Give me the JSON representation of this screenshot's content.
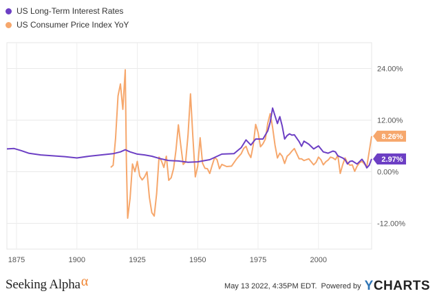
{
  "legend": {
    "items": [
      {
        "label": "US Long-Term Interest Rates",
        "color": "#6c3fc4"
      },
      {
        "label": "US Consumer Price Index YoY",
        "color": "#f6a76c"
      }
    ]
  },
  "footer": {
    "brand": "Seeking Alpha",
    "brand_symbol": "α",
    "timestamp": "May 13 2022, 4:35PM EDT.",
    "powered_by": "Powered by",
    "provider": "CHARTS",
    "provider_initial": "Y"
  },
  "chart_data": {
    "type": "line",
    "xlim": [
      1871,
      2022
    ],
    "ylim": [
      -18,
      30
    ],
    "x_ticks": [
      1875,
      1900,
      1925,
      1950,
      1975,
      2000
    ],
    "y_ticks": [
      {
        "value": 24,
        "label": "24.00%"
      },
      {
        "value": 12,
        "label": "12.00%"
      },
      {
        "value": 0,
        "label": "0.00%"
      },
      {
        "value": -12,
        "label": "-12.00%"
      }
    ],
    "grid": true,
    "legend_position": "top-left",
    "series": [
      {
        "name": "US Long-Term Interest Rates",
        "color": "#6c3fc4",
        "end_label": "2.97%",
        "points": [
          [
            1871,
            5.3
          ],
          [
            1874,
            5.4
          ],
          [
            1877,
            4.9
          ],
          [
            1880,
            4.3
          ],
          [
            1885,
            3.9
          ],
          [
            1890,
            3.7
          ],
          [
            1895,
            3.5
          ],
          [
            1900,
            3.2
          ],
          [
            1905,
            3.6
          ],
          [
            1910,
            3.9
          ],
          [
            1915,
            4.2
          ],
          [
            1918,
            4.6
          ],
          [
            1920,
            5.1
          ],
          [
            1922,
            4.6
          ],
          [
            1925,
            4.1
          ],
          [
            1928,
            3.9
          ],
          [
            1931,
            3.6
          ],
          [
            1934,
            3.1
          ],
          [
            1938,
            2.6
          ],
          [
            1942,
            2.5
          ],
          [
            1946,
            2.2
          ],
          [
            1950,
            2.3
          ],
          [
            1955,
            2.8
          ],
          [
            1960,
            4.1
          ],
          [
            1965,
            4.2
          ],
          [
            1968,
            5.6
          ],
          [
            1970,
            7.4
          ],
          [
            1972,
            6.2
          ],
          [
            1974,
            7.6
          ],
          [
            1977,
            7.6
          ],
          [
            1979,
            9.5
          ],
          [
            1980,
            11.5
          ],
          [
            1981,
            14.8
          ],
          [
            1982,
            13.0
          ],
          [
            1983,
            11.2
          ],
          [
            1984,
            12.8
          ],
          [
            1985,
            10.6
          ],
          [
            1986,
            7.6
          ],
          [
            1987,
            8.4
          ],
          [
            1988,
            8.8
          ],
          [
            1989,
            8.5
          ],
          [
            1990,
            8.6
          ],
          [
            1992,
            7.0
          ],
          [
            1993,
            5.9
          ],
          [
            1994,
            7.1
          ],
          [
            1996,
            6.4
          ],
          [
            1998,
            5.3
          ],
          [
            2000,
            6.0
          ],
          [
            2002,
            4.6
          ],
          [
            2004,
            4.3
          ],
          [
            2006,
            4.8
          ],
          [
            2007,
            4.6
          ],
          [
            2008,
            3.7
          ],
          [
            2010,
            3.2
          ],
          [
            2011,
            2.8
          ],
          [
            2012,
            1.8
          ],
          [
            2013,
            2.4
          ],
          [
            2014,
            2.5
          ],
          [
            2016,
            1.8
          ],
          [
            2018,
            2.9
          ],
          [
            2019,
            2.1
          ],
          [
            2020,
            0.9
          ],
          [
            2021,
            1.5
          ],
          [
            2022,
            2.97
          ]
        ]
      },
      {
        "name": "US Consumer Price Index YoY",
        "color": "#f6a76c",
        "end_label": "8.26%",
        "points": [
          [
            1914,
            1.0
          ],
          [
            1915,
            1.5
          ],
          [
            1916,
            7.7
          ],
          [
            1917,
            17.6
          ],
          [
            1918,
            20.4
          ],
          [
            1919,
            14.5
          ],
          [
            1920,
            23.7
          ],
          [
            1920.5,
            2.0
          ],
          [
            1921,
            -10.8
          ],
          [
            1922,
            -6.2
          ],
          [
            1923,
            1.8
          ],
          [
            1924,
            0.0
          ],
          [
            1925,
            2.4
          ],
          [
            1926,
            -1.0
          ],
          [
            1927,
            -1.9
          ],
          [
            1928,
            -1.2
          ],
          [
            1929,
            0.0
          ],
          [
            1930,
            -6.0
          ],
          [
            1931,
            -9.5
          ],
          [
            1932,
            -10.3
          ],
          [
            1933,
            -5.1
          ],
          [
            1934,
            3.4
          ],
          [
            1935,
            2.5
          ],
          [
            1936,
            1.0
          ],
          [
            1937,
            3.6
          ],
          [
            1938,
            -2.0
          ],
          [
            1939,
            -1.4
          ],
          [
            1940,
            0.7
          ],
          [
            1941,
            5.0
          ],
          [
            1942,
            10.9
          ],
          [
            1943,
            6.1
          ],
          [
            1944,
            1.7
          ],
          [
            1945,
            2.3
          ],
          [
            1946,
            8.5
          ],
          [
            1947,
            18.1
          ],
          [
            1948,
            8.0
          ],
          [
            1949,
            -1.2
          ],
          [
            1950,
            1.3
          ],
          [
            1951,
            7.9
          ],
          [
            1952,
            2.0
          ],
          [
            1953,
            0.8
          ],
          [
            1954,
            0.7
          ],
          [
            1955,
            -0.4
          ],
          [
            1956,
            1.5
          ],
          [
            1957,
            3.3
          ],
          [
            1958,
            2.8
          ],
          [
            1959,
            0.7
          ],
          [
            1960,
            1.7
          ],
          [
            1962,
            1.2
          ],
          [
            1964,
            1.3
          ],
          [
            1966,
            2.9
          ],
          [
            1968,
            4.2
          ],
          [
            1969,
            5.4
          ],
          [
            1970,
            5.9
          ],
          [
            1971,
            4.3
          ],
          [
            1972,
            3.3
          ],
          [
            1973,
            6.2
          ],
          [
            1974,
            11.0
          ],
          [
            1975,
            9.1
          ],
          [
            1976,
            5.8
          ],
          [
            1977,
            6.5
          ],
          [
            1978,
            7.6
          ],
          [
            1979,
            11.3
          ],
          [
            1980,
            13.5
          ],
          [
            1981,
            10.3
          ],
          [
            1982,
            6.2
          ],
          [
            1983,
            3.2
          ],
          [
            1984,
            4.3
          ],
          [
            1985,
            3.6
          ],
          [
            1986,
            1.9
          ],
          [
            1987,
            3.6
          ],
          [
            1988,
            4.1
          ],
          [
            1989,
            4.8
          ],
          [
            1990,
            5.4
          ],
          [
            1991,
            4.2
          ],
          [
            1992,
            3.0
          ],
          [
            1993,
            3.0
          ],
          [
            1994,
            2.6
          ],
          [
            1995,
            2.8
          ],
          [
            1996,
            3.0
          ],
          [
            1997,
            2.3
          ],
          [
            1998,
            1.6
          ],
          [
            1999,
            2.2
          ],
          [
            2000,
            3.4
          ],
          [
            2001,
            2.8
          ],
          [
            2002,
            1.6
          ],
          [
            2003,
            2.3
          ],
          [
            2004,
            2.7
          ],
          [
            2005,
            3.4
          ],
          [
            2006,
            3.2
          ],
          [
            2007,
            2.8
          ],
          [
            2008,
            3.8
          ],
          [
            2009,
            -0.4
          ],
          [
            2010,
            1.6
          ],
          [
            2011,
            3.2
          ],
          [
            2012,
            2.1
          ],
          [
            2013,
            1.5
          ],
          [
            2014,
            1.6
          ],
          [
            2015,
            0.1
          ],
          [
            2016,
            1.3
          ],
          [
            2017,
            2.1
          ],
          [
            2018,
            2.4
          ],
          [
            2019,
            1.8
          ],
          [
            2020,
            1.2
          ],
          [
            2021,
            4.7
          ],
          [
            2022,
            8.26
          ]
        ]
      }
    ]
  }
}
